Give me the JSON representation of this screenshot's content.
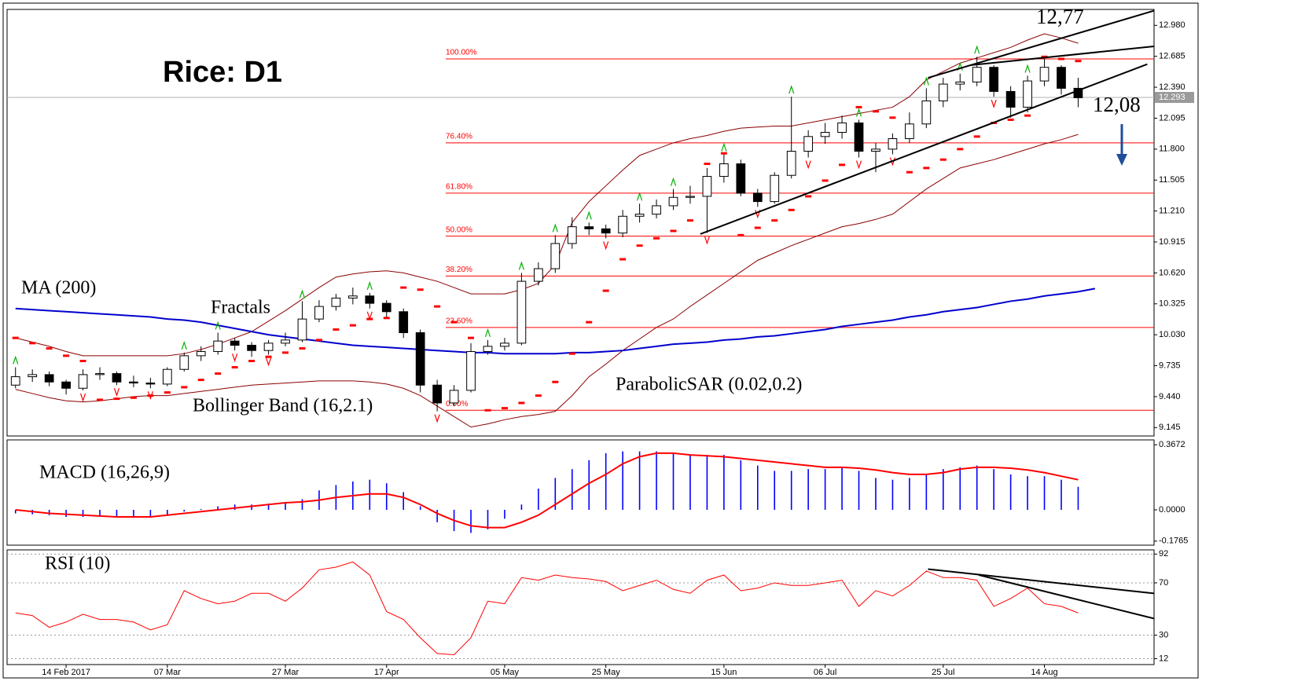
{
  "chart_data": [
    {
      "type": "candlestick",
      "title": "Rice: D1",
      "categories": [
        null,
        null,
        null,
        "14 Feb 2017",
        null,
        null,
        null,
        null,
        null,
        "07 Mar",
        null,
        null,
        null,
        null,
        null,
        null,
        "27 Mar",
        null,
        null,
        null,
        null,
        null,
        "17 Apr",
        null,
        null,
        null,
        null,
        null,
        null,
        "05 May",
        null,
        null,
        null,
        null,
        null,
        "25 May",
        null,
        null,
        null,
        null,
        null,
        null,
        "15 Jun",
        null,
        null,
        null,
        null,
        null,
        "06 Jul",
        null,
        null,
        null,
        null,
        null,
        null,
        "25 Jul",
        null,
        null,
        null,
        null,
        null,
        "14 Aug",
        null,
        null,
        null,
        null,
        null,
        null
      ],
      "open": [
        9.55,
        9.63,
        9.65,
        9.58,
        9.52,
        9.65,
        9.66,
        9.58,
        9.57,
        9.56,
        9.7,
        9.83,
        9.87,
        9.97,
        9.93,
        9.88,
        9.95,
        9.98,
        10.18,
        10.3,
        10.38,
        10.4,
        10.33,
        10.25,
        10.05,
        9.55,
        9.38,
        9.5,
        9.87,
        9.92,
        9.95,
        10.54,
        10.66,
        10.9,
        11.06,
        11.04,
        11.0,
        11.16,
        11.18,
        11.26,
        11.34,
        11.35,
        11.54,
        11.66,
        11.38,
        11.3,
        11.55,
        11.78,
        11.92,
        11.96,
        12.05,
        11.78,
        11.8,
        11.9,
        12.04,
        12.26,
        12.42,
        12.44,
        12.58,
        12.35,
        12.2,
        12.45,
        12.58,
        12.38,
        null,
        null,
        null,
        null
      ],
      "high": [
        9.72,
        9.7,
        9.68,
        9.6,
        9.7,
        9.72,
        9.68,
        9.64,
        9.62,
        9.72,
        9.86,
        9.92,
        10.05,
        10.0,
        9.96,
        9.98,
        10.05,
        10.35,
        10.36,
        10.42,
        10.48,
        10.43,
        10.36,
        10.28,
        10.08,
        9.6,
        9.55,
        9.95,
        9.98,
        10.0,
        10.62,
        10.72,
        10.98,
        11.15,
        11.1,
        11.08,
        11.22,
        11.28,
        11.32,
        11.42,
        11.45,
        11.62,
        11.75,
        11.7,
        11.42,
        11.58,
        12.3,
        11.98,
        12.05,
        12.12,
        12.08,
        11.86,
        11.95,
        12.15,
        12.38,
        12.48,
        12.52,
        12.68,
        12.6,
        12.4,
        12.5,
        12.66,
        12.6,
        12.48,
        null,
        null,
        null,
        null
      ],
      "low": [
        9.52,
        9.58,
        9.54,
        9.46,
        9.5,
        9.6,
        9.55,
        9.53,
        9.52,
        9.54,
        9.68,
        9.78,
        9.84,
        9.88,
        9.82,
        9.84,
        9.92,
        9.96,
        10.15,
        10.26,
        10.32,
        10.28,
        10.2,
        10.0,
        9.48,
        9.3,
        9.35,
        9.48,
        9.84,
        9.88,
        9.93,
        10.5,
        10.62,
        10.85,
        10.98,
        10.95,
        10.96,
        11.1,
        11.14,
        11.22,
        11.28,
        11.0,
        11.48,
        11.35,
        11.25,
        11.28,
        11.52,
        11.72,
        11.85,
        11.9,
        11.72,
        11.58,
        11.75,
        11.86,
        12.0,
        12.2,
        12.36,
        12.4,
        12.3,
        12.1,
        12.15,
        12.4,
        12.32,
        12.2,
        null,
        null,
        null,
        null
      ],
      "close": [
        9.63,
        9.65,
        9.58,
        9.52,
        9.65,
        9.66,
        9.58,
        9.57,
        9.56,
        9.7,
        9.83,
        9.87,
        9.97,
        9.93,
        9.88,
        9.95,
        9.98,
        10.18,
        10.3,
        10.38,
        10.4,
        10.33,
        10.25,
        10.05,
        9.55,
        9.38,
        9.5,
        9.87,
        9.92,
        9.95,
        10.54,
        10.66,
        10.9,
        11.06,
        11.04,
        11.0,
        11.16,
        11.18,
        11.26,
        11.34,
        11.35,
        11.54,
        11.66,
        11.38,
        11.3,
        11.55,
        11.78,
        11.92,
        11.96,
        12.05,
        11.78,
        11.8,
        11.9,
        12.04,
        12.26,
        12.42,
        12.44,
        12.58,
        12.35,
        12.2,
        12.45,
        12.58,
        12.38,
        12.29,
        null,
        null,
        null,
        null
      ],
      "color": "#000000",
      "ylim": [
        9.065,
        13.132
      ],
      "yticks": [
        {
          "value": 9.145,
          "label": "9.145"
        },
        {
          "value": 9.44,
          "label": "9.440"
        },
        {
          "value": 9.735,
          "label": "9.735"
        },
        {
          "value": 10.03,
          "label": "10.030"
        },
        {
          "value": 10.325,
          "label": "10.325"
        },
        {
          "value": 10.62,
          "label": "10.620"
        },
        {
          "value": 10.915,
          "label": "10.915"
        },
        {
          "value": 11.21,
          "label": "11.210"
        },
        {
          "value": 11.505,
          "label": "11.505"
        },
        {
          "value": 11.8,
          "label": "11.800"
        },
        {
          "value": 12.095,
          "label": "12.095"
        },
        {
          "value": 12.39,
          "label": "12.390"
        },
        {
          "value": 12.685,
          "label": "12.685"
        },
        {
          "value": 12.98,
          "label": "12.980"
        }
      ],
      "grid": false,
      "last_price": {
        "value": 12.293,
        "label": "12.293"
      },
      "series": [
        {
          "name": "MA (200)",
          "color": "#0000cd",
          "values": [
            10.28,
            10.27,
            10.26,
            10.25,
            10.24,
            10.23,
            10.22,
            10.21,
            10.2,
            10.18,
            10.17,
            10.15,
            10.12,
            10.09,
            10.06,
            10.03,
            10.01,
            9.99,
            9.97,
            9.95,
            9.93,
            9.92,
            9.91,
            9.9,
            9.89,
            9.88,
            9.87,
            9.86,
            9.86,
            9.85,
            9.85,
            9.85,
            9.85,
            9.86,
            9.86,
            9.87,
            9.88,
            9.9,
            9.92,
            9.94,
            9.95,
            9.96,
            9.98,
            9.99,
            10.01,
            10.02,
            10.04,
            10.06,
            10.08,
            10.11,
            10.13,
            10.15,
            10.17,
            10.2,
            10.22,
            10.25,
            10.27,
            10.29,
            10.32,
            10.35,
            10.37,
            10.4,
            10.42,
            10.44,
            10.47,
            null,
            null,
            null
          ]
        },
        {
          "name": "Bollinger Band (16,2.1)",
          "color": "#8b0000",
          "upper": [
            10.0,
            9.96,
            9.92,
            9.87,
            9.83,
            9.83,
            9.83,
            9.83,
            9.83,
            9.83,
            9.85,
            9.89,
            9.94,
            10.0,
            10.06,
            10.16,
            10.26,
            10.37,
            10.48,
            10.58,
            10.61,
            10.63,
            10.64,
            10.62,
            10.58,
            10.54,
            10.48,
            10.42,
            10.42,
            10.42,
            10.46,
            10.52,
            10.7,
            11.1,
            11.3,
            11.45,
            11.6,
            11.74,
            11.8,
            11.86,
            11.9,
            11.93,
            11.97,
            12.0,
            12.01,
            12.02,
            12.02,
            12.05,
            12.08,
            12.11,
            12.14,
            12.17,
            12.2,
            12.3,
            12.46,
            12.54,
            12.62,
            12.67,
            12.72,
            12.77,
            12.84,
            12.9,
            12.86,
            12.81,
            null,
            null,
            null,
            null
          ],
          "lower": [
            9.51,
            9.47,
            9.43,
            9.4,
            9.39,
            9.4,
            9.42,
            9.44,
            9.45,
            9.45,
            9.47,
            9.49,
            9.51,
            9.53,
            9.55,
            9.56,
            9.57,
            9.58,
            9.59,
            9.59,
            9.59,
            9.58,
            9.56,
            9.52,
            9.45,
            9.35,
            9.25,
            9.15,
            9.18,
            9.22,
            9.25,
            9.27,
            9.3,
            9.45,
            9.63,
            9.75,
            9.88,
            9.99,
            10.1,
            10.18,
            10.3,
            10.41,
            10.52,
            10.63,
            10.74,
            10.81,
            10.88,
            10.94,
            11.0,
            11.06,
            11.09,
            11.13,
            11.18,
            11.3,
            11.42,
            11.52,
            11.62,
            11.66,
            11.7,
            11.75,
            11.8,
            11.85,
            11.89,
            11.94,
            null,
            null,
            null,
            null
          ]
        },
        {
          "name": "ParabolicSAR (0.02,0.2)",
          "color": "#ff0000",
          "values": [
            10.0,
            9.95,
            9.9,
            9.83,
            9.78,
            9.41,
            9.42,
            9.43,
            9.45,
            9.48,
            9.53,
            9.6,
            9.66,
            9.72,
            9.78,
            9.82,
            9.86,
            9.9,
            9.98,
            10.08,
            10.12,
            10.18,
            10.19,
            10.48,
            10.46,
            10.3,
            10.15,
            10.0,
            9.31,
            9.33,
            9.38,
            9.45,
            9.58,
            9.85,
            10.15,
            10.45,
            10.75,
            10.88,
            10.95,
            11.02,
            11.12,
            11.66,
            11.76,
            10.98,
            11.05,
            11.12,
            11.22,
            11.35,
            11.5,
            11.65,
            12.2,
            12.16,
            12.1,
            11.58,
            11.62,
            11.7,
            11.8,
            11.92,
            12.05,
            12.08,
            12.12,
            12.68,
            12.66,
            12.64,
            null,
            null,
            null,
            null
          ]
        },
        {
          "name": "Fractals",
          "up_color": "#00b000",
          "down_color": "#ff0000",
          "up": [
            9.72,
            null,
            null,
            null,
            null,
            null,
            null,
            null,
            null,
            null,
            9.86,
            null,
            10.05,
            null,
            null,
            null,
            null,
            10.35,
            null,
            null,
            null,
            10.43,
            null,
            null,
            null,
            null,
            null,
            null,
            9.98,
            null,
            10.62,
            null,
            10.98,
            null,
            11.1,
            null,
            null,
            11.28,
            null,
            11.42,
            null,
            null,
            11.75,
            null,
            null,
            null,
            12.3,
            null,
            null,
            null,
            12.08,
            null,
            null,
            null,
            12.38,
            null,
            12.52,
            12.68,
            null,
            null,
            12.5,
            null,
            null,
            null,
            null,
            null,
            null,
            null
          ],
          "down": [
            null,
            null,
            null,
            null,
            9.5,
            null,
            9.55,
            null,
            9.52,
            null,
            null,
            null,
            null,
            9.88,
            null,
            9.84,
            null,
            null,
            null,
            null,
            null,
            10.28,
            null,
            null,
            null,
            9.3,
            null,
            null,
            null,
            null,
            null,
            null,
            null,
            null,
            null,
            10.95,
            null,
            null,
            null,
            null,
            null,
            11.0,
            null,
            null,
            11.25,
            null,
            null,
            11.72,
            null,
            null,
            11.72,
            null,
            11.75,
            null,
            null,
            null,
            null,
            null,
            12.3,
            null,
            null,
            null,
            null,
            null,
            null,
            null,
            null,
            null
          ]
        }
      ],
      "fib_color": "#ff0000",
      "fib_levels": [
        {
          "label": "100.00%",
          "price": 12.66
        },
        {
          "label": "76.40%",
          "price": 11.86
        },
        {
          "label": "61.80%",
          "price": 11.38
        },
        {
          "label": "50.00%",
          "price": 10.97
        },
        {
          "label": "38.20%",
          "price": 10.59
        },
        {
          "label": "23.60%",
          "price": 10.1
        },
        {
          "label": "0.00%",
          "price": 9.31
        }
      ],
      "trendline_color": "#000000",
      "trendlines": [
        {
          "x": [
            40.6,
            67.1
          ],
          "y": [
            10.99,
            12.61
          ]
        },
        {
          "x": [
            54.1,
            67.5
          ],
          "y": [
            12.48,
            13.12
          ]
        },
        {
          "x": [
            56.6,
            67.5
          ],
          "y": [
            12.6,
            12.78
          ]
        }
      ],
      "annotations": [
        "12,77",
        "12,08"
      ]
    },
    {
      "type": "macd",
      "label": "MACD (16,26,9)",
      "color": "#0000ff",
      "signal_color": "#ff0000",
      "values": [
        -0.02,
        -0.025,
        -0.03,
        -0.04,
        -0.04,
        -0.035,
        -0.04,
        -0.045,
        -0.04,
        -0.03,
        -0.01,
        0.005,
        0.02,
        0.03,
        0.03,
        0.035,
        0.04,
        0.06,
        0.11,
        0.14,
        0.16,
        0.17,
        0.15,
        0.1,
        0.02,
        -0.07,
        -0.12,
        -0.13,
        -0.11,
        -0.05,
        0.03,
        0.12,
        0.18,
        0.23,
        0.28,
        0.32,
        0.33,
        0.33,
        0.33,
        0.32,
        0.31,
        0.31,
        0.31,
        0.28,
        0.25,
        0.22,
        0.22,
        0.23,
        0.23,
        0.24,
        0.22,
        0.18,
        0.17,
        0.18,
        0.2,
        0.23,
        0.24,
        0.25,
        0.23,
        0.2,
        0.19,
        0.19,
        0.17,
        0.13,
        null,
        null,
        null,
        null
      ],
      "signal": [
        0.0,
        -0.01,
        -0.02,
        -0.025,
        -0.03,
        -0.035,
        -0.04,
        -0.04,
        -0.04,
        -0.03,
        -0.02,
        -0.01,
        0.0,
        0.01,
        0.02,
        0.03,
        0.04,
        0.045,
        0.055,
        0.07,
        0.08,
        0.09,
        0.09,
        0.07,
        0.03,
        -0.02,
        -0.06,
        -0.09,
        -0.1,
        -0.1,
        -0.07,
        -0.03,
        0.03,
        0.09,
        0.15,
        0.2,
        0.26,
        0.3,
        0.32,
        0.32,
        0.31,
        0.305,
        0.3,
        0.29,
        0.28,
        0.27,
        0.26,
        0.25,
        0.24,
        0.24,
        0.235,
        0.225,
        0.21,
        0.2,
        0.2,
        0.21,
        0.23,
        0.24,
        0.24,
        0.235,
        0.225,
        0.21,
        0.19,
        0.17,
        null,
        null,
        null,
        null
      ],
      "ylim": [
        -0.1994,
        0.3947
      ],
      "yticks": [
        {
          "value": 0.3672,
          "label": "0.3672"
        },
        {
          "value": 0,
          "label": "0.0000"
        },
        {
          "value": -0.1765,
          "label": "-0.1765"
        }
      ],
      "grid": false
    },
    {
      "type": "line",
      "label": "RSI (10)",
      "color": "#ff0000",
      "values": [
        47,
        45,
        36,
        40,
        46,
        42,
        42,
        40,
        34,
        38,
        64,
        58,
        54,
        56,
        62,
        62,
        56,
        66,
        80,
        82,
        86,
        76,
        48,
        42,
        28,
        16,
        15,
        28,
        56,
        54,
        74,
        72,
        76,
        74,
        73,
        71,
        64,
        68,
        72,
        65,
        62,
        72,
        76,
        64,
        66,
        70,
        68,
        68,
        70,
        72,
        52,
        64,
        60,
        68,
        79,
        74,
        74,
        72,
        52,
        58,
        66,
        54,
        52,
        47,
        null,
        null,
        null,
        null
      ],
      "ylim": [
        7.5,
        95.2
      ],
      "yticks": [
        92,
        70,
        30,
        12
      ],
      "grid": true,
      "trendline_color": "#000000",
      "trendlines": [
        {
          "x": [
            54.1,
            67.5
          ],
          "y": [
            80.5,
            61.9
          ]
        },
        {
          "x": [
            57.1,
            67.5
          ],
          "y": [
            76,
            42.7
          ]
        }
      ]
    }
  ]
}
